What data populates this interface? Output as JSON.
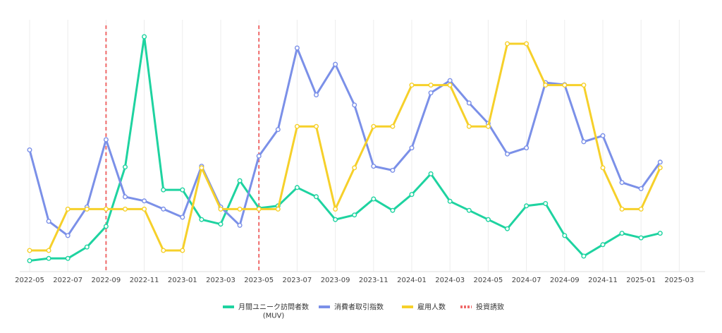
{
  "chart_data": {
    "type": "line",
    "x": [
      "2022-05",
      "2022-06",
      "2022-07",
      "2022-08",
      "2022-09",
      "2022-10",
      "2022-11",
      "2022-12",
      "2023-01",
      "2023-02",
      "2023-03",
      "2023-04",
      "2023-05",
      "2023-06",
      "2023-07",
      "2023-08",
      "2023-09",
      "2023-10",
      "2023-11",
      "2023-12",
      "2024-01",
      "2024-02",
      "2024-03",
      "2024-04",
      "2024-05",
      "2024-06",
      "2024-07",
      "2024-08",
      "2024-09",
      "2024-10",
      "2024-11",
      "2024-12",
      "2025-01",
      "2025-02"
    ],
    "x_ticks": [
      "2022-05",
      "2022-07",
      "2022-09",
      "2022-11",
      "2023-01",
      "2023-03",
      "2023-05",
      "2023-07",
      "2023-09",
      "2023-11",
      "2024-01",
      "2024-03",
      "2024-05",
      "2024-07",
      "2024-09",
      "2024-11",
      "2025-01",
      "2025-03"
    ],
    "y_scale": "normalized, no printed axis",
    "ylim": [
      0,
      100
    ],
    "grid": "vertical",
    "legend_position": "bottom-center",
    "series": [
      {
        "name": "月間ユニーク訪問者数\n(MUV)",
        "color": "#1ed3a0",
        "values": [
          2,
          3,
          3,
          8,
          17,
          43,
          100,
          33,
          33,
          20,
          18,
          37,
          25,
          26,
          34,
          30,
          20,
          22,
          29,
          24,
          31,
          40,
          28,
          24,
          20,
          16,
          26,
          27,
          13,
          4,
          9,
          14,
          12,
          14
        ]
      },
      {
        "name": "消費者取引指数",
        "color": "#7b90e8",
        "values": [
          50,
          15,
          8,
          22,
          55,
          27,
          25,
          21,
          17,
          42,
          22,
          13,
          47,
          60,
          100,
          77,
          92,
          72,
          42,
          40,
          51,
          78,
          84,
          73,
          63,
          48,
          51,
          83,
          82,
          54,
          57,
          34,
          31,
          44
        ]
      },
      {
        "name": "雇用人数",
        "color": "#f6d02a",
        "values": [
          0,
          0,
          20,
          20,
          20,
          20,
          20,
          0,
          0,
          40,
          20,
          20,
          20,
          20,
          60,
          60,
          20,
          40,
          60,
          60,
          80,
          80,
          80,
          60,
          60,
          100,
          100,
          80,
          80,
          80,
          40,
          20,
          20,
          40
        ]
      },
      {
        "name": "投資誘致",
        "color": "#ef6a6a",
        "style": "dashed-vertical-marker",
        "x": [
          "2022-09",
          "2023-05"
        ]
      }
    ]
  }
}
